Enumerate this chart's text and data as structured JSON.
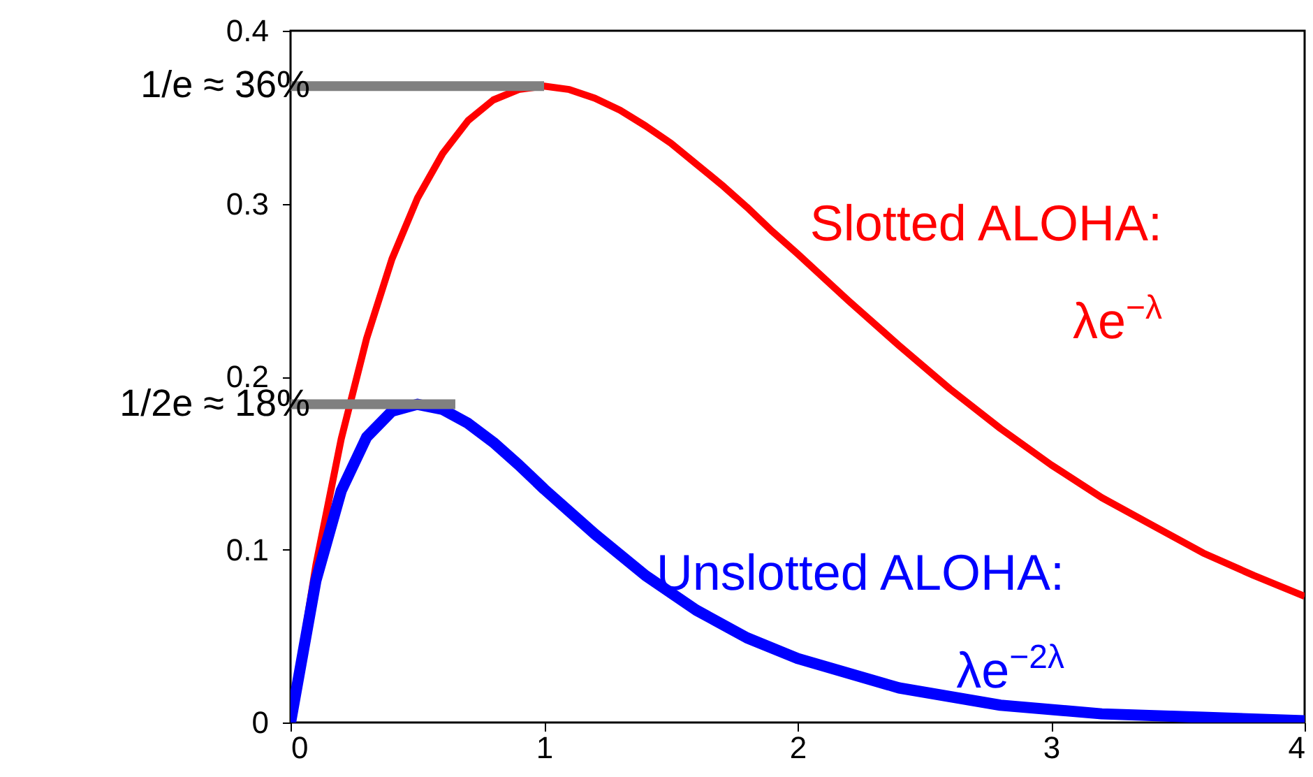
{
  "chart_data": {
    "type": "line",
    "xlim": [
      0,
      4
    ],
    "xticks": [
      0,
      1,
      2,
      3,
      4
    ],
    "ylim": [
      0,
      0.4
    ],
    "yticks": [
      0,
      0.1,
      0.2,
      0.3,
      0.4
    ],
    "grid": false,
    "legend": false,
    "series": [
      {
        "name": "Slotted ALOHA:\nλe$^{−λ}$",
        "color": "#ff0000",
        "x": [
          0,
          0.1,
          0.2,
          0.3,
          0.4,
          0.5,
          0.6,
          0.7,
          0.8,
          0.9,
          1.0,
          1.1,
          1.2,
          1.3,
          1.4,
          1.5,
          1.6,
          1.7,
          1.8,
          1.9,
          2.0,
          2.2,
          2.4,
          2.6,
          2.8,
          3.0,
          3.2,
          3.4,
          3.6,
          3.8,
          4.0
        ],
        "values": [
          0,
          0.091,
          0.164,
          0.222,
          0.268,
          0.303,
          0.329,
          0.348,
          0.36,
          0.366,
          0.368,
          0.366,
          0.361,
          0.354,
          0.345,
          0.335,
          0.323,
          0.311,
          0.298,
          0.284,
          0.271,
          0.244,
          0.218,
          0.193,
          0.17,
          0.149,
          0.13,
          0.114,
          0.098,
          0.085,
          0.073
        ]
      },
      {
        "name": "Unslotted ALOHA:\nλe$^{−2λ}$",
        "color": "#0000ff",
        "x": [
          0,
          0.1,
          0.2,
          0.3,
          0.4,
          0.5,
          0.6,
          0.7,
          0.8,
          0.9,
          1.0,
          1.2,
          1.4,
          1.6,
          1.8,
          2.0,
          2.4,
          2.8,
          3.2,
          3.6,
          4.0
        ],
        "values": [
          0,
          0.082,
          0.134,
          0.165,
          0.18,
          0.184,
          0.181,
          0.173,
          0.162,
          0.149,
          0.135,
          0.109,
          0.085,
          0.065,
          0.049,
          0.037,
          0.02,
          0.01,
          0.005,
          0.003,
          0.001
        ]
      },
      {
        "color": "#808080",
        "x": [
          0,
          1
        ],
        "values": [
          0.368,
          0.368
        ]
      },
      {
        "color": "#808080",
        "x": [
          0,
          0.65
        ],
        "values": [
          0.184,
          0.184
        ]
      }
    ],
    "annotations": [
      {
        "text": "1/e ≈ 36%",
        "x": 0,
        "y": 0.368
      },
      {
        "text": "1/2e ≈ 18%",
        "x": 0,
        "y": 0.184
      }
    ]
  }
}
